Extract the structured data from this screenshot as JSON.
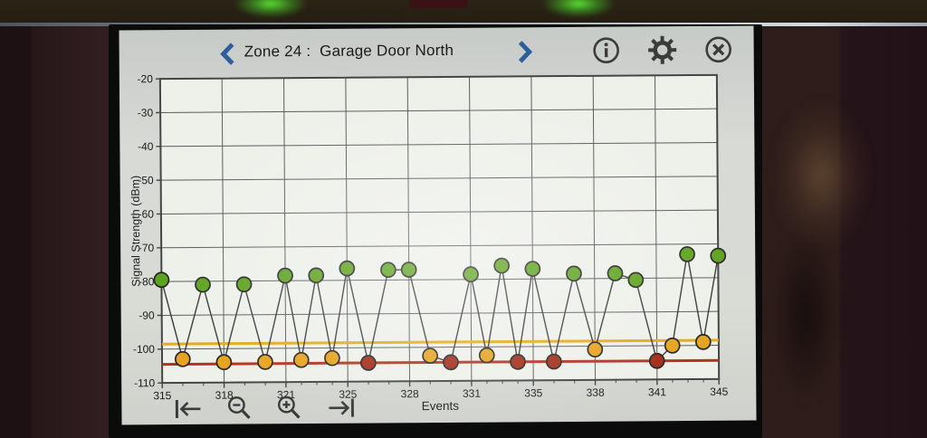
{
  "header": {
    "title": "Zone 24 :  Garage Door North",
    "icons": [
      "chevron-left",
      "chevron-right",
      "info",
      "settings-gear",
      "close"
    ]
  },
  "toolbar": {
    "icons": [
      "skip-to-start",
      "zoom-out",
      "zoom-in",
      "skip-to-end"
    ]
  },
  "chart_data": {
    "type": "line",
    "title": "",
    "xlabel": "Events",
    "ylabel": "Signal Strength (dBm)",
    "ylim": [
      -110,
      -20
    ],
    "grid": true,
    "y_ticks": [
      -20,
      -30,
      -40,
      -50,
      -60,
      -70,
      -80,
      -90,
      -100,
      -110
    ],
    "x_tick_labels": [
      315,
      318,
      321,
      325,
      328,
      331,
      335,
      338,
      341,
      345
    ],
    "x": [
      315,
      316,
      317,
      318,
      319,
      320,
      321,
      322,
      323,
      324,
      325,
      326,
      327,
      328,
      329,
      330,
      331,
      332,
      333,
      334,
      335,
      336,
      337,
      338,
      339,
      340,
      341,
      342,
      343,
      344,
      345
    ],
    "values": [
      -79.5,
      -103,
      -81,
      -104,
      -81,
      -104,
      -78.5,
      -103.5,
      -78.5,
      -103,
      -76.5,
      -104.5,
      -77,
      -77,
      -102.5,
      -104.5,
      -78.5,
      -102.5,
      -76,
      -104.5,
      -77,
      -104.5,
      -78.5,
      -101,
      -78.5,
      -80.5,
      -104.5,
      -100,
      -73,
      -99,
      -73.5
    ],
    "point_status": [
      "good",
      "warn",
      "good",
      "warn",
      "good",
      "warn",
      "good",
      "warn",
      "good",
      "warn",
      "good",
      "critical",
      "good",
      "good",
      "warn",
      "critical",
      "good",
      "warn",
      "good",
      "critical",
      "good",
      "critical",
      "good",
      "warn",
      "good",
      "good",
      "critical",
      "warn",
      "good",
      "warn",
      "good"
    ],
    "thresholds": [
      {
        "name": "warning",
        "value": -98.5,
        "color": "#e2ac1a"
      },
      {
        "name": "critical",
        "value": -104.5,
        "color": "#b23420"
      }
    ]
  },
  "colors": {
    "screen_bg": "#d7dad5",
    "plot_bg": "#eef0ea",
    "grid": "#5c5c5c",
    "plot_border": "#454545",
    "axis_text": "#1d1d1d",
    "icon": "#3b3b3b",
    "chevron": "#2d5f9f",
    "series_line": "#3a3a3a",
    "dot_stroke": "#262626",
    "status_good": "#5ea31f",
    "status_warn": "#e6a31f",
    "status_critical": "#a32d18",
    "led_green": "#4ade2c"
  }
}
